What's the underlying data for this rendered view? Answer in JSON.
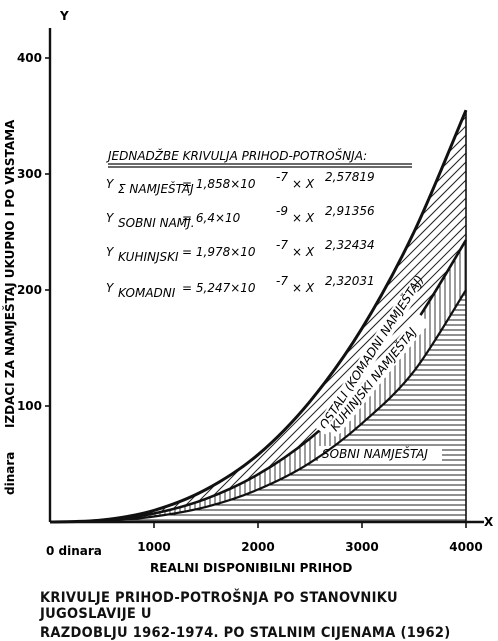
{
  "chart_data": {
    "type": "area",
    "axes": {
      "x_letter": "X",
      "y_letter": "Y",
      "xlabel": "REALNI DISPONIBILNI PRIHOD",
      "ylabel": "IZDACI ZA NAMJEŠTAJ UKUPNO I PO VRSTAMA",
      "ylabel_unit": "dinara",
      "x_zero_label": "0 dinara",
      "xlim": [
        0,
        4000
      ],
      "ylim": [
        0,
        400
      ],
      "x_ticks": [
        {
          "v": 1000,
          "label": "1000"
        },
        {
          "v": 2000,
          "label": "2000"
        },
        {
          "v": 3000,
          "label": "3000"
        },
        {
          "v": 4000,
          "label": "4000"
        }
      ],
      "y_ticks": [
        {
          "v": 100,
          "label": "100"
        },
        {
          "v": 200,
          "label": "200"
        },
        {
          "v": 300,
          "label": "300"
        },
        {
          "v": 400,
          "label": "400"
        }
      ]
    },
    "equations_title": "JEDNADŽBE KRIVULJA PRIHOD-POTROŠNJA:",
    "equations": [
      {
        "y": "Y",
        "sub": "Σ NAMJEŠTAJ",
        "rhs": "= 1,858×10",
        "exp1": "-7",
        "mid": "× X",
        "exp2": "2,57819"
      },
      {
        "y": "Y",
        "sub": "SOBNI NAMJ.",
        "rhs": "= 6,4×10",
        "exp1": "-9",
        "mid": "× X",
        "exp2": "2,91356"
      },
      {
        "y": "Y",
        "sub": "KUHINJSKI",
        "rhs": "= 1,978×10",
        "exp1": "-7",
        "mid": "× X",
        "exp2": "2,32434"
      },
      {
        "y": "Y",
        "sub": "KOMADNI",
        "rhs": "= 5,247×10",
        "exp1": "-7",
        "mid": "× X",
        "exp2": "2,32031"
      }
    ],
    "series": [
      {
        "name": "OSTALI (KOMADNI NAMJEŠTAJ)",
        "x": [
          0,
          500,
          1000,
          1500,
          2000,
          2500,
          3000,
          3500,
          4000
        ],
        "y": [
          0,
          1.7,
          10,
          28,
          58,
          104,
          167,
          250,
          355
        ]
      },
      {
        "name": "KUHINJSKI NAMJEŠTAJ",
        "x": [
          0,
          500,
          1000,
          1500,
          2000,
          2500,
          3000,
          3500,
          4000
        ],
        "y": [
          0,
          1.3,
          7.3,
          20,
          41,
          72,
          114,
          170,
          243
        ]
      },
      {
        "name": "SOBNI NAMJEŠTAJ",
        "x": [
          0,
          500,
          1000,
          1500,
          2000,
          2500,
          3000,
          3500,
          4000
        ],
        "y": [
          0,
          0.9,
          4.7,
          13,
          28,
          51,
          85,
          130,
          200
        ]
      }
    ],
    "grid": false,
    "legend": "curve labels along bands"
  },
  "caption": {
    "line1": "KRIVULJE PRIHOD-POTROŠNJA PO STANOVNIKU JUGOSLAVIJE U",
    "line2": "RAZDOBLJU 1962-1974. PO STALNIM CIJENAMA (1962)"
  }
}
